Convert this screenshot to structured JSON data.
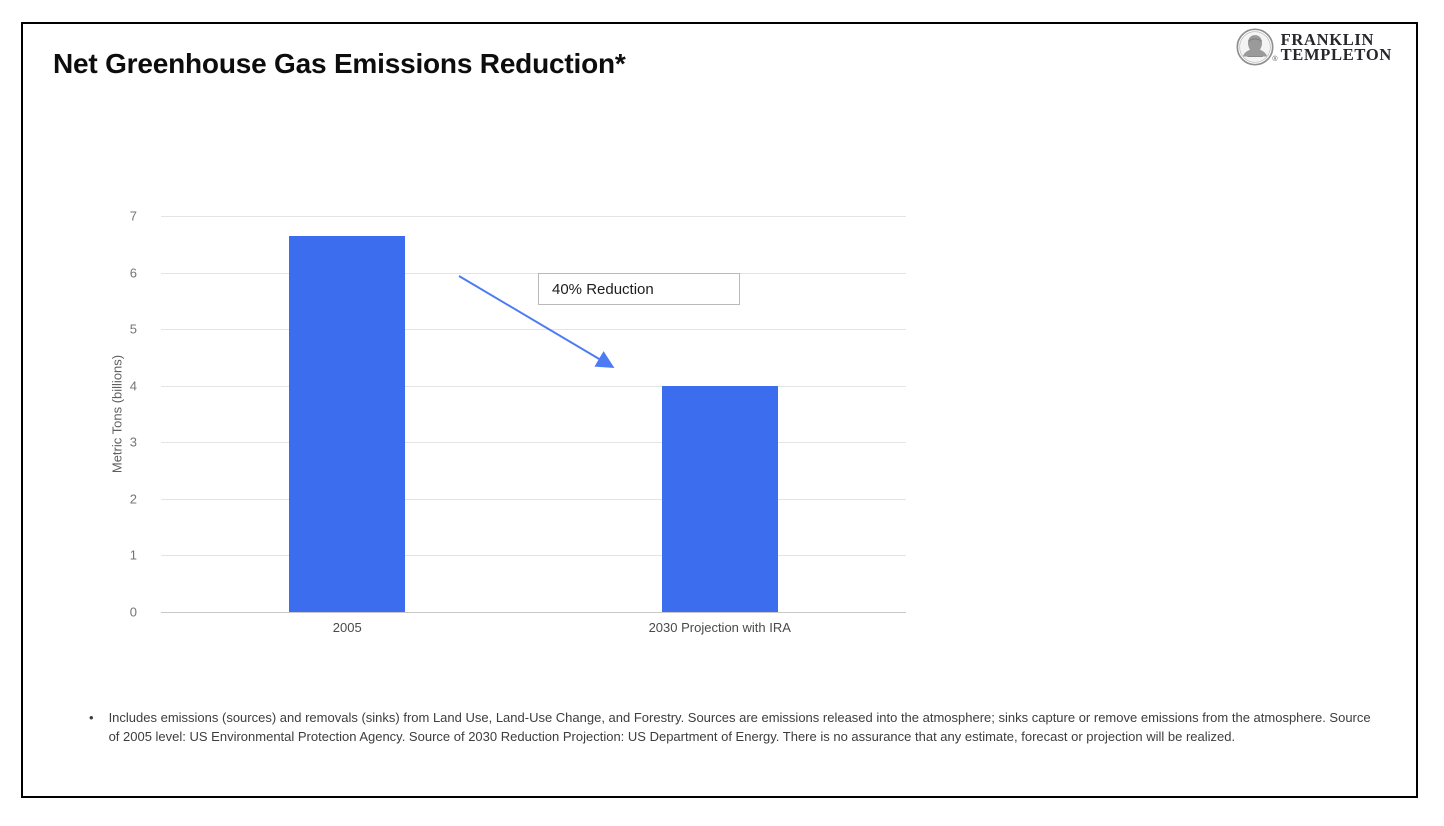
{
  "header": {
    "title": "Net Greenhouse Gas Emissions Reduction*"
  },
  "logo": {
    "name_line1": "FRANKLIN",
    "name_line2": "TEMPLETON",
    "registered_mark": "®",
    "icon": "franklin-bust-icon"
  },
  "chart_data": {
    "type": "bar",
    "title": "",
    "categories": [
      "2005",
      "2030 Projection with IRA"
    ],
    "values": [
      6.65,
      4.0
    ],
    "ylabel": "Metric Tons (billions)",
    "xlabel": "",
    "ylim": [
      0,
      7
    ],
    "yticks": [
      0,
      1,
      2,
      3,
      4,
      5,
      6,
      7
    ],
    "grid": true,
    "legend": "none",
    "bar_color": "#3d6def",
    "arrow_color": "#4d7bf3",
    "gridline_color": "#e4e4e4",
    "annotation": {
      "label": "40% Reduction",
      "arrow_direction": "down-right toward 2030 bar"
    }
  },
  "footnote": {
    "bullet": "•",
    "text": "Includes emissions (sources) and removals (sinks) from Land Use, Land-Use Change, and Forestry. Sources are emissions released into the atmosphere; sinks capture or remove emissions from the atmosphere. Source of 2005 level: US Environmental Protection Agency. Source of 2030 Reduction Projection: US Department of Energy. There is no assurance that any estimate, forecast or projection will be realized."
  }
}
